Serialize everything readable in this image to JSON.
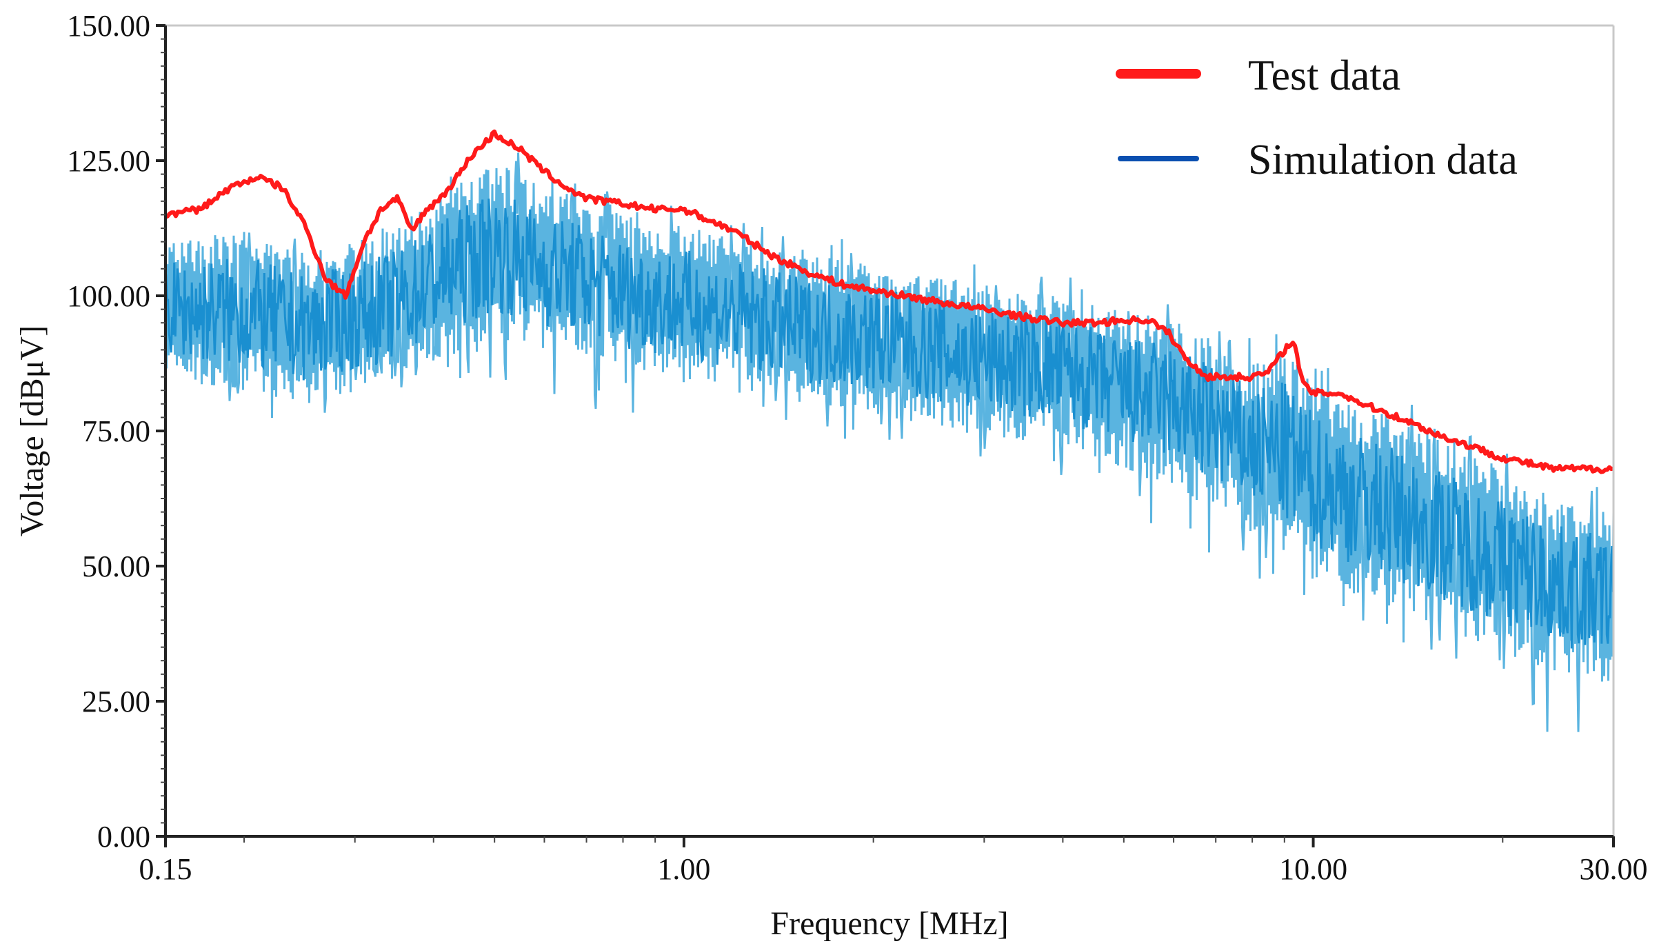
{
  "chart_data": {
    "type": "line",
    "title": "",
    "xlabel": "Frequency [MHz]",
    "ylabel": "Voltage [dBμV]",
    "xscale": "log",
    "xlim": [
      0.15,
      30
    ],
    "ylim": [
      0,
      150
    ],
    "grid": false,
    "legend_position": "top-right",
    "x_ticks": [
      {
        "value": 0.15,
        "label": "0.15"
      },
      {
        "value": 1,
        "label": "1.00"
      },
      {
        "value": 10,
        "label": "10.00"
      },
      {
        "value": 30,
        "label": "30.00"
      }
    ],
    "y_ticks": [
      {
        "value": 0,
        "label": "0.00"
      },
      {
        "value": 25,
        "label": "25.00"
      },
      {
        "value": 50,
        "label": "50.00"
      },
      {
        "value": 75,
        "label": "75.00"
      },
      {
        "value": 100,
        "label": "100.00"
      },
      {
        "value": 125,
        "label": "125.00"
      },
      {
        "value": 150,
        "label": "150.00"
      }
    ],
    "series": [
      {
        "name": "Test data",
        "color": "#ff1a1a",
        "x": [
          0.15,
          0.17,
          0.19,
          0.21,
          0.23,
          0.25,
          0.27,
          0.29,
          0.31,
          0.33,
          0.35,
          0.37,
          0.39,
          0.41,
          0.43,
          0.46,
          0.5,
          0.55,
          0.6,
          0.65,
          0.7,
          0.8,
          0.9,
          1.0,
          1.2,
          1.4,
          1.6,
          1.8,
          2.0,
          2.5,
          3.0,
          3.5,
          4.0,
          4.5,
          5.0,
          5.5,
          5.9,
          6.3,
          6.8,
          7.5,
          8.0,
          8.5,
          9.0,
          9.3,
          9.6,
          10.0,
          11.0,
          12.0,
          14.0,
          16.0,
          18.0,
          20.0,
          22.0,
          24.0,
          26.0,
          28.0,
          30.0
        ],
        "values": [
          115,
          116,
          120,
          122,
          120,
          113,
          103,
          100,
          110,
          116,
          118,
          112,
          116,
          118,
          121,
          126,
          130,
          127,
          123,
          120,
          118,
          117,
          116,
          116,
          112,
          107,
          104,
          102,
          101,
          99,
          97.5,
          96,
          95,
          95,
          95.5,
          95.5,
          93,
          88,
          85,
          85,
          85,
          86,
          90,
          92,
          84,
          82,
          82,
          80,
          77,
          74,
          72,
          70,
          69,
          68,
          68,
          68,
          68
        ]
      },
      {
        "name": "Simulation data",
        "color": "#1a8fd0",
        "legend_color": "#0a4fb0",
        "x": [
          0.15,
          0.2,
          0.25,
          0.3,
          0.35,
          0.4,
          0.5,
          0.6,
          0.7,
          0.8,
          1.0,
          1.5,
          2.0,
          3.0,
          4.0,
          5.0,
          6.0,
          7.0,
          8.0,
          9.0,
          10.0,
          12.0,
          15.0,
          20.0,
          25.0,
          30.0
        ],
        "values_upper": [
          110,
          112,
          108,
          110,
          113,
          118,
          125,
          120,
          118,
          115,
          113,
          108,
          106,
          102,
          100,
          97,
          96,
          92,
          88,
          90,
          84,
          80,
          75,
          68,
          62,
          60
        ],
        "values_lower": [
          85,
          82,
          80,
          82,
          84,
          88,
          92,
          90,
          88,
          86,
          84,
          80,
          78,
          74,
          72,
          68,
          64,
          60,
          56,
          52,
          48,
          44,
          40,
          34,
          30,
          28
        ],
        "spike_min": [
          82,
          78,
          75,
          80,
          82,
          85,
          84,
          80,
          76,
          78,
          78,
          75,
          72,
          70,
          66,
          60,
          55,
          50,
          48,
          45,
          42,
          38,
          32,
          28,
          15,
          25
        ]
      }
    ]
  }
}
